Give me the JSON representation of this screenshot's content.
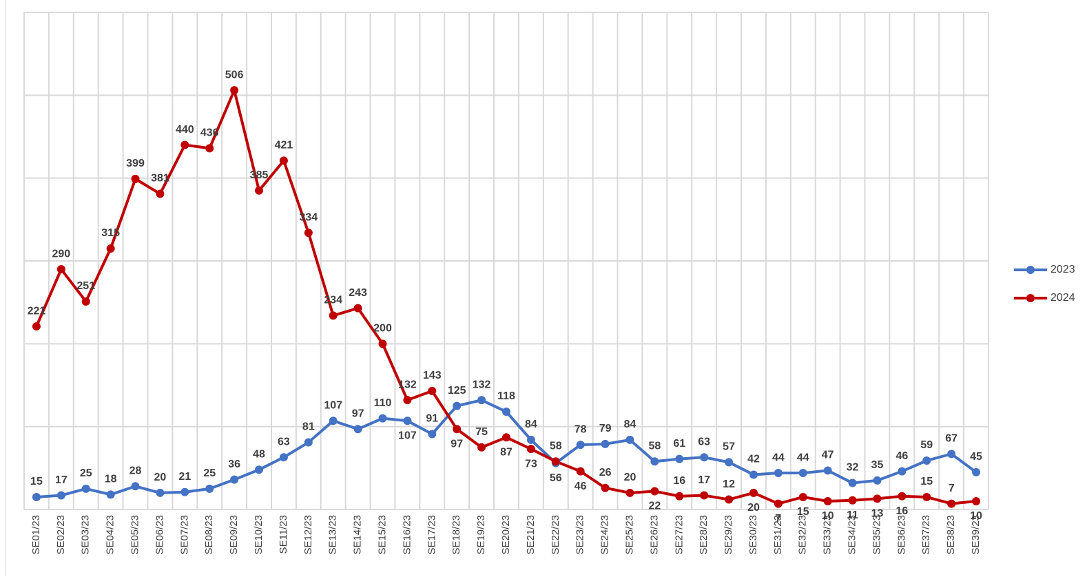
{
  "chart_data": {
    "type": "line",
    "categories": [
      "SE01/23",
      "SE02/23",
      "SE03/23",
      "SE04/23",
      "SE05/23",
      "SE06/23",
      "SE07/23",
      "SE08/23",
      "SE09/23",
      "SE10/23",
      "SE11/23",
      "SE12/23",
      "SE13/23",
      "SE14/23",
      "SE15/23",
      "SE16/23",
      "SE17/23",
      "SE18/23",
      "SE19/23",
      "SE20/23",
      "SE21/23",
      "SE22/23",
      "SE23/23",
      "SE24/23",
      "SE25/23",
      "SE26/23",
      "SE27/23",
      "SE28/23",
      "SE29/23",
      "SE30/23",
      "SE31/23",
      "SE32/23",
      "SE33/23",
      "SE34/23",
      "SE35/23",
      "SE36/23",
      "SE37/23",
      "SE38/23",
      "SE39/23"
    ],
    "series": [
      {
        "name": "2023",
        "color": "#4472c4",
        "values": [
          15,
          17,
          25,
          18,
          28,
          20,
          21,
          25,
          36,
          48,
          63,
          81,
          107,
          97,
          110,
          107,
          91,
          125,
          132,
          118,
          84,
          56,
          78,
          79,
          84,
          58,
          61,
          63,
          57,
          42,
          44,
          44,
          47,
          32,
          35,
          46,
          59,
          67,
          45
        ]
      },
      {
        "name": "2024",
        "color": "#c00000",
        "values": [
          221,
          290,
          251,
          315,
          399,
          381,
          440,
          436,
          506,
          385,
          421,
          334,
          234,
          243,
          200,
          132,
          143,
          97,
          75,
          87,
          73,
          58,
          46,
          26,
          20,
          22,
          16,
          17,
          12,
          20,
          7,
          15,
          10,
          11,
          13,
          16,
          15,
          7,
          10
        ]
      }
    ],
    "ylim": [
      0,
      600
    ],
    "yticks": [
      0,
      100,
      200,
      300,
      400,
      500,
      600
    ],
    "grid": true
  }
}
